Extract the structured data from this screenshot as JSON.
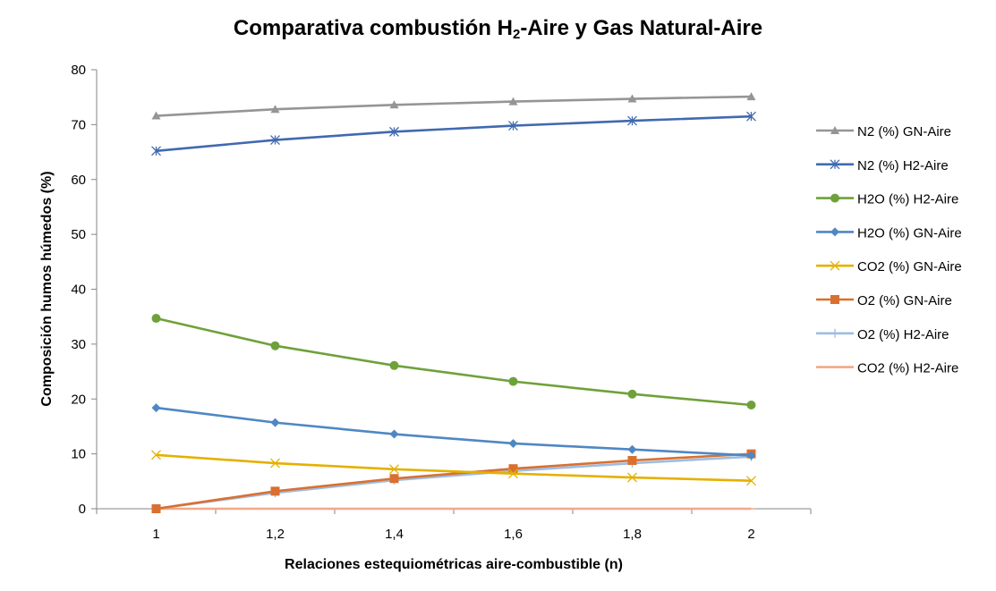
{
  "chart_data": {
    "type": "line",
    "title": {
      "prefix": "Comparativa combustión H",
      "subscript": "2",
      "suffix": "-Aire y Gas Natural-Aire"
    },
    "xlabel": "Relaciones estequiométricas aire-combustible (n)",
    "ylabel": "Composición humos húmedos (%)",
    "categories": [
      "1",
      "1,2",
      "1,4",
      "1,6",
      "1,8",
      "2"
    ],
    "x": [
      1,
      1.2,
      1.4,
      1.6,
      1.8,
      2
    ],
    "ylim": [
      0,
      80
    ],
    "yticks": [
      "0",
      "10",
      "20",
      "30",
      "40",
      "50",
      "60",
      "70",
      "80"
    ],
    "ytick_values": [
      0,
      10,
      20,
      30,
      40,
      50,
      60,
      70,
      80
    ],
    "grid": false,
    "legend_position": "right",
    "series": [
      {
        "name": "N2 (%) GN-Aire",
        "color": "#959595",
        "marker": "triangle",
        "values": [
          71.6,
          72.8,
          73.6,
          74.2,
          74.7,
          75.1
        ]
      },
      {
        "name": "N2 (%) H2-Aire",
        "color": "#4169b0",
        "marker": "asterisk",
        "values": [
          65.2,
          67.2,
          68.7,
          69.8,
          70.7,
          71.5
        ]
      },
      {
        "name": "H2O (%) H2-Aire",
        "color": "#6fa13a",
        "marker": "circle",
        "values": [
          34.7,
          29.7,
          26.1,
          23.2,
          20.9,
          18.9
        ]
      },
      {
        "name": "H2O (%) GN-Aire",
        "color": "#4f87c4",
        "marker": "diamond",
        "values": [
          18.4,
          15.7,
          13.6,
          11.9,
          10.8,
          9.7
        ]
      },
      {
        "name": "CO2 (%) GN-Aire",
        "color": "#e5b000",
        "marker": "x",
        "values": [
          9.8,
          8.3,
          7.2,
          6.4,
          5.7,
          5.1
        ]
      },
      {
        "name": "O2 (%) GN-Aire",
        "color": "#d9702f",
        "marker": "square",
        "values": [
          0,
          3.2,
          5.5,
          7.3,
          8.8,
          10.0
        ]
      },
      {
        "name": "O2 (%) H2-Aire",
        "color": "#9dbde1",
        "marker": "plus",
        "values": [
          0,
          2.9,
          5.2,
          6.9,
          8.3,
          9.5
        ]
      },
      {
        "name": "CO2 (%) H2-Aire",
        "color": "#f0a888",
        "marker": "dash",
        "values": [
          0,
          0,
          0,
          0,
          0,
          0
        ]
      }
    ]
  }
}
